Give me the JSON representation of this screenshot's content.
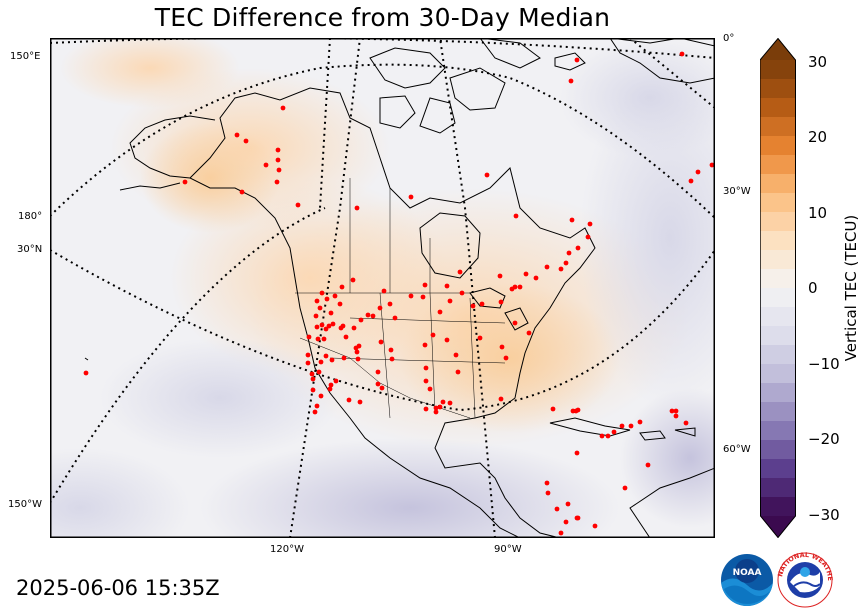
{
  "title": "TEC Difference from 30-Day Median",
  "timestamp": "2025-06-06 15:35Z",
  "map": {
    "lon_labels_left": [
      "150°E",
      "180°",
      "150°W"
    ],
    "lat_label_left": "30°N",
    "lon_labels_right": [
      "0°",
      "30°W",
      "60°W"
    ],
    "lon_labels_bottom": [
      "120°W",
      "90°W"
    ]
  },
  "colorbar": {
    "label": "Vertical TEC (TECU)",
    "ticks": [
      "30",
      "20",
      "10",
      "0",
      "−10",
      "−20",
      "−30"
    ],
    "range": [
      -30,
      30
    ],
    "extend": "both",
    "colors": {
      "negative_dark": "#3b0a4f",
      "neutral": "#f4f4f4",
      "positive_dark": "#7a3d0a"
    }
  },
  "logos": {
    "left": "NOAA",
    "right": "NATIONAL WEATHER SERVICE"
  },
  "colors": {
    "station_dot": "#ff0000",
    "coastline": "#000000"
  }
}
